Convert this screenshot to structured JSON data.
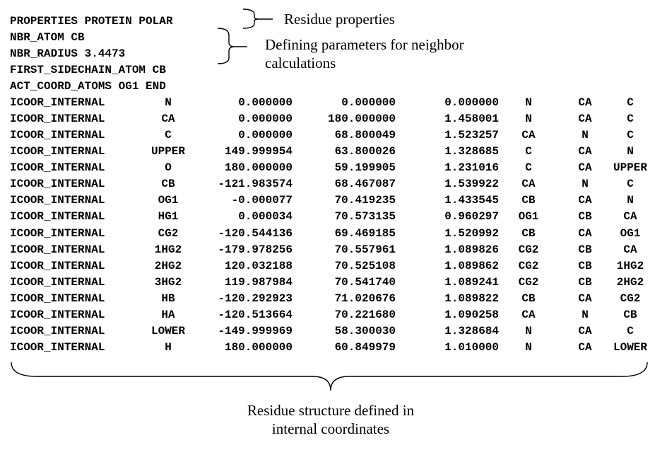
{
  "header_lines": [
    "PROPERTIES PROTEIN POLAR",
    "NBR_ATOM CB",
    "NBR_RADIUS 3.4473",
    "FIRST_SIDECHAIN_ATOM CB",
    "ACT_COORD_ATOMS OG1 END"
  ],
  "rows": [
    [
      "ICOOR_INTERNAL",
      "N",
      "0.000000",
      "0.000000",
      "0.000000",
      "N",
      "CA",
      "C"
    ],
    [
      "ICOOR_INTERNAL",
      "CA",
      "0.000000",
      "180.000000",
      "1.458001",
      "N",
      "CA",
      "C"
    ],
    [
      "ICOOR_INTERNAL",
      "C",
      "0.000000",
      "68.800049",
      "1.523257",
      "CA",
      "N",
      "C"
    ],
    [
      "ICOOR_INTERNAL",
      "UPPER",
      "149.999954",
      "63.800026",
      "1.328685",
      "C",
      "CA",
      "N"
    ],
    [
      "ICOOR_INTERNAL",
      "O",
      "180.000000",
      "59.199905",
      "1.231016",
      "C",
      "CA",
      "UPPER"
    ],
    [
      "ICOOR_INTERNAL",
      "CB",
      "-121.983574",
      "68.467087",
      "1.539922",
      "CA",
      "N",
      "C"
    ],
    [
      "ICOOR_INTERNAL",
      "OG1",
      "-0.000077",
      "70.419235",
      "1.433545",
      "CB",
      "CA",
      "N"
    ],
    [
      "ICOOR_INTERNAL",
      "HG1",
      "0.000034",
      "70.573135",
      "0.960297",
      "OG1",
      "CB",
      "CA"
    ],
    [
      "ICOOR_INTERNAL",
      "CG2",
      "-120.544136",
      "69.469185",
      "1.520992",
      "CB",
      "CA",
      "OG1"
    ],
    [
      "ICOOR_INTERNAL",
      "1HG2",
      "-179.978256",
      "70.557961",
      "1.089826",
      "CG2",
      "CB",
      "CA"
    ],
    [
      "ICOOR_INTERNAL",
      "2HG2",
      "120.032188",
      "70.525108",
      "1.089862",
      "CG2",
      "CB",
      "1HG2"
    ],
    [
      "ICOOR_INTERNAL",
      "3HG2",
      "119.987984",
      "70.541740",
      "1.089241",
      "CG2",
      "CB",
      "2HG2"
    ],
    [
      "ICOOR_INTERNAL",
      "HB",
      "-120.292923",
      "71.020676",
      "1.089822",
      "CB",
      "CA",
      "CG2"
    ],
    [
      "ICOOR_INTERNAL",
      "HA",
      "-120.513664",
      "70.221680",
      "1.090258",
      "CA",
      "N",
      "CB"
    ],
    [
      "ICOOR_INTERNAL",
      "LOWER",
      "-149.999969",
      "58.300030",
      "1.328684",
      "N",
      "CA",
      "C"
    ],
    [
      "ICOOR_INTERNAL",
      "H",
      "180.000000",
      "60.849979",
      "1.010000",
      "N",
      "CA",
      "LOWER"
    ]
  ],
  "annotations": {
    "residue_properties": "Residue properties",
    "neighbor_params": [
      "Defining parameters for neighbor",
      "calculations"
    ],
    "internal_coords": [
      "Residue structure defined in",
      "internal coordinates"
    ]
  }
}
